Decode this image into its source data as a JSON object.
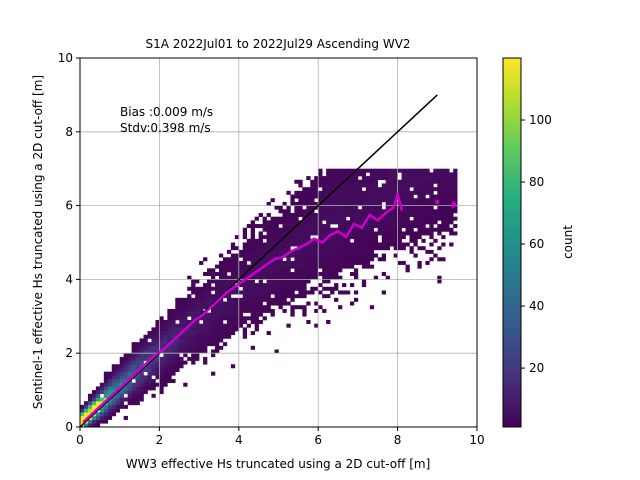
{
  "chart_data": {
    "type": "heatmap",
    "title": "S1A 2022Jul01 to 2022Jul29 Ascending WV2",
    "xlabel": "WW3 effective Hs truncated using a 2D cut-off [m]",
    "ylabel": "Sentinel-1 effective Hs truncated using a 2D cut-off [m]",
    "xlim": [
      0,
      10
    ],
    "ylim": [
      0,
      10
    ],
    "xticks": [
      "0",
      "2",
      "4",
      "6",
      "8",
      "10"
    ],
    "yticks": [
      "0",
      "2",
      "4",
      "6",
      "8",
      "10"
    ],
    "grid": true,
    "colorbar": {
      "label": "count",
      "range": [
        1,
        120
      ],
      "ticks": [
        "20",
        "40",
        "60",
        "80",
        "100"
      ],
      "colormap": "viridis"
    },
    "annotation_lines": [
      "Bias :0.009 m/s",
      "Stdv:0.398 m/s"
    ],
    "identity_line": {
      "x": [
        0,
        9
      ],
      "y": [
        0,
        9
      ],
      "color": "#000000"
    },
    "binned_mean": {
      "color": "#cc00cc",
      "x": [
        0.1,
        0.3,
        0.5,
        0.7,
        0.9,
        1.1,
        1.3,
        1.5,
        1.7,
        1.9,
        2.1,
        2.3,
        2.5,
        2.7,
        2.9,
        3.1,
        3.3,
        3.5,
        3.7,
        3.9,
        4.1,
        4.3,
        4.5,
        4.7,
        4.9,
        5.1,
        5.3,
        5.5,
        5.7,
        5.9,
        6.1,
        6.3,
        6.5,
        6.7,
        6.9,
        7.1,
        7.3,
        7.5,
        7.7,
        7.9,
        8.0,
        8.1
      ],
      "y": [
        0.15,
        0.35,
        0.55,
        0.75,
        0.95,
        1.15,
        1.35,
        1.55,
        1.75,
        1.95,
        2.1,
        2.3,
        2.5,
        2.7,
        2.9,
        3.05,
        3.25,
        3.45,
        3.65,
        3.8,
        3.95,
        4.1,
        4.25,
        4.4,
        4.55,
        4.6,
        4.75,
        4.85,
        4.95,
        5.1,
        5.0,
        5.2,
        5.3,
        5.15,
        5.5,
        5.4,
        5.75,
        5.6,
        5.8,
        5.95,
        6.3,
        5.9
      ]
    },
    "outlier_points": {
      "x": [
        9.0,
        9.4,
        9.42
      ],
      "y": [
        6.1,
        6.0,
        6.05
      ]
    }
  }
}
